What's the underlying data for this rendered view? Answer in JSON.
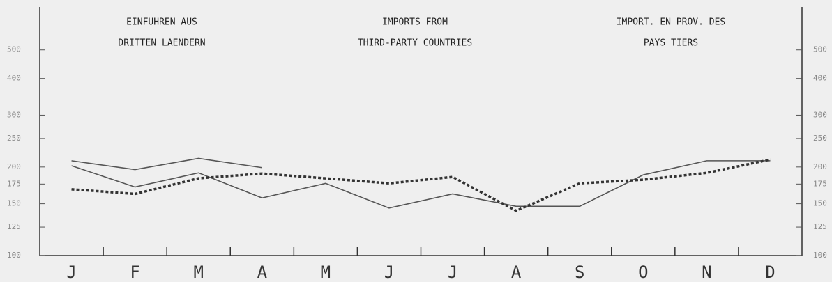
{
  "chart_data": {
    "type": "line",
    "annotations": [
      [
        "EINFUHREN AUS",
        "DRITTEN LAENDERN"
      ],
      [
        "IMPORTS FROM",
        "THIRD-PARTY COUNTRIES"
      ],
      [
        "IMPORT. EN PROV. DES",
        "PAYS TIERS"
      ]
    ],
    "categories": [
      "J",
      "F",
      "M",
      "A",
      "M",
      "J",
      "J",
      "A",
      "S",
      "O",
      "N",
      "D"
    ],
    "series": [
      {
        "color": "#555555",
        "style": "solid",
        "values": [
          210,
          196,
          214,
          199,
          null,
          null,
          null,
          null,
          null,
          null,
          null,
          null
        ]
      },
      {
        "color": "#555555",
        "style": "solid",
        "values": [
          202,
          171,
          191,
          157,
          176,
          145,
          162,
          147,
          147,
          188,
          210,
          210
        ]
      },
      {
        "color": "#333333",
        "style": "dotted",
        "values": [
          168,
          162,
          183,
          190,
          183,
          176,
          185,
          142,
          176,
          181,
          191,
          212
        ]
      }
    ],
    "log_scale": true,
    "ylim": [
      100,
      700
    ],
    "yticks": [
      100,
      125,
      150,
      175,
      200,
      250,
      300,
      400,
      500
    ]
  }
}
